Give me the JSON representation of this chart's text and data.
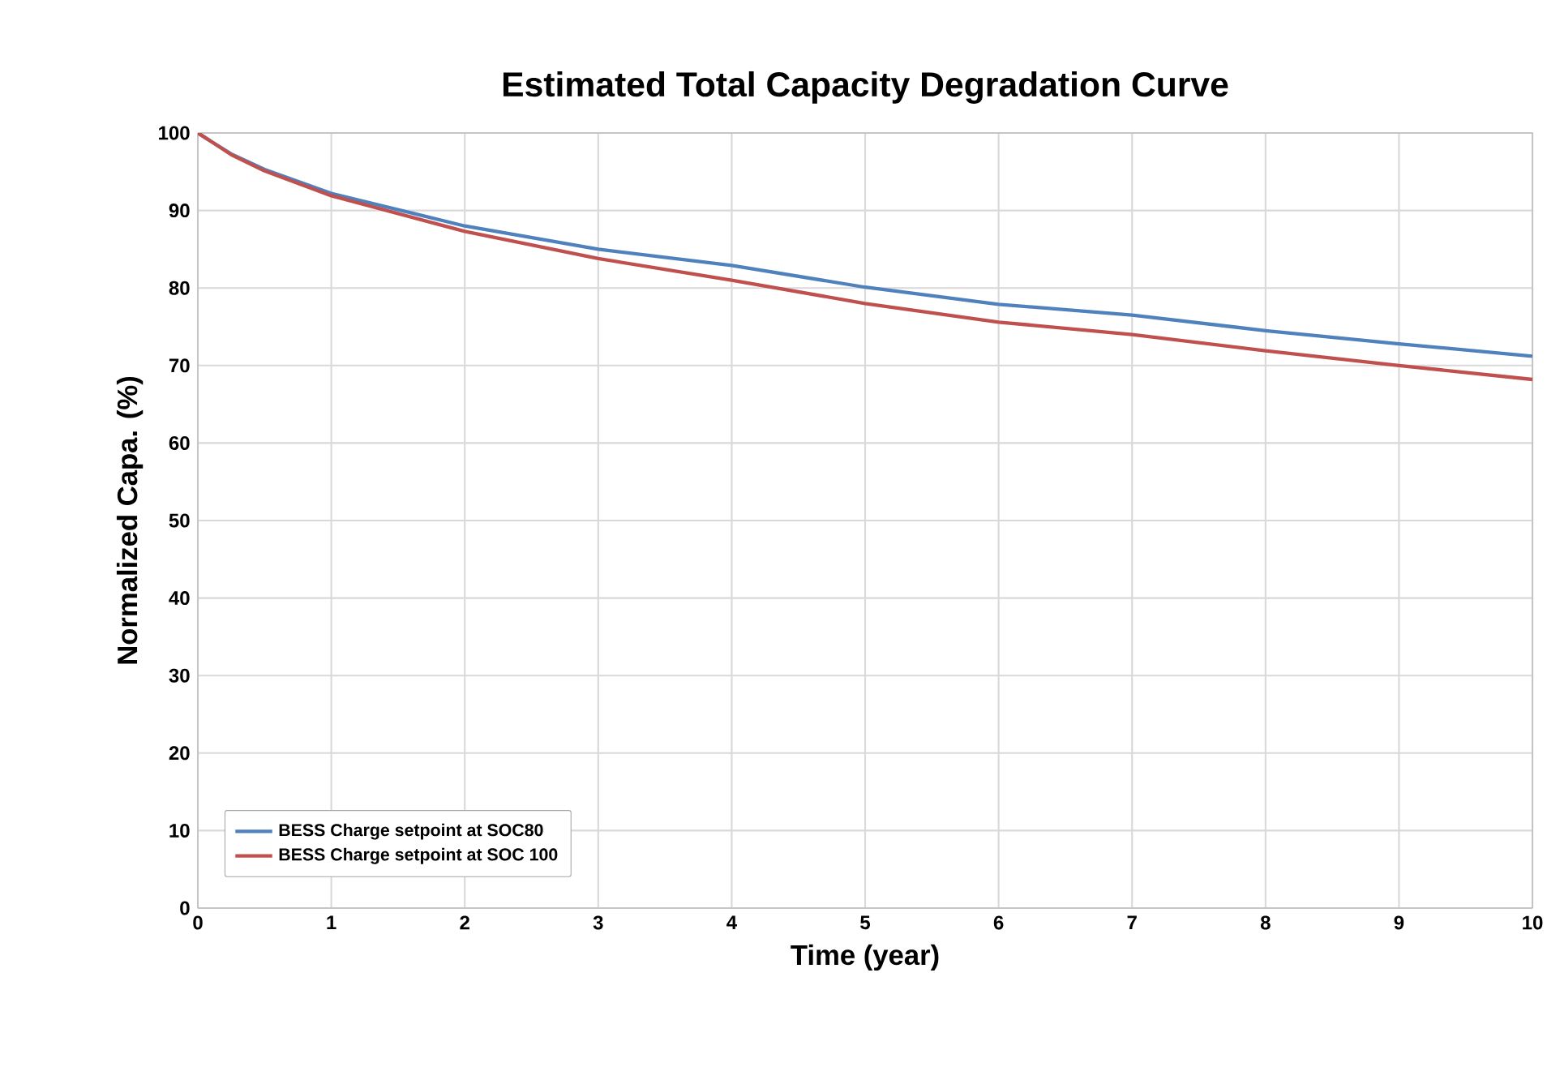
{
  "chart_data": {
    "type": "line",
    "title": "Estimated Total Capacity Degradation Curve",
    "xlabel": "Time (year)",
    "ylabel": "Normalized Capa. (%)",
    "x": [
      0,
      0.1,
      0.25,
      0.5,
      1,
      2,
      3,
      4,
      5,
      6,
      7,
      8,
      9,
      10
    ],
    "series": [
      {
        "name": "BESS Charge setpoint at SOC80",
        "color": "#4f81bd",
        "values": [
          100,
          98.9,
          97.3,
          95.3,
          92.2,
          88.0,
          85.0,
          82.9,
          80.1,
          77.9,
          76.5,
          74.5,
          72.8,
          71.2
        ]
      },
      {
        "name": "BESS Charge setpoint at SOC 100",
        "color": "#c0504d",
        "values": [
          100,
          98.9,
          97.2,
          95.1,
          91.9,
          87.3,
          83.8,
          81.0,
          78.0,
          75.6,
          74.0,
          71.9,
          70.0,
          68.2
        ]
      }
    ],
    "xlim": [
      0,
      10
    ],
    "ylim": [
      0,
      100
    ],
    "xticks": [
      0,
      1,
      2,
      3,
      4,
      5,
      6,
      7,
      8,
      9,
      10
    ],
    "yticks": [
      0,
      10,
      20,
      30,
      40,
      50,
      60,
      70,
      80,
      90,
      100
    ],
    "grid": true,
    "legend": "bottom left"
  }
}
